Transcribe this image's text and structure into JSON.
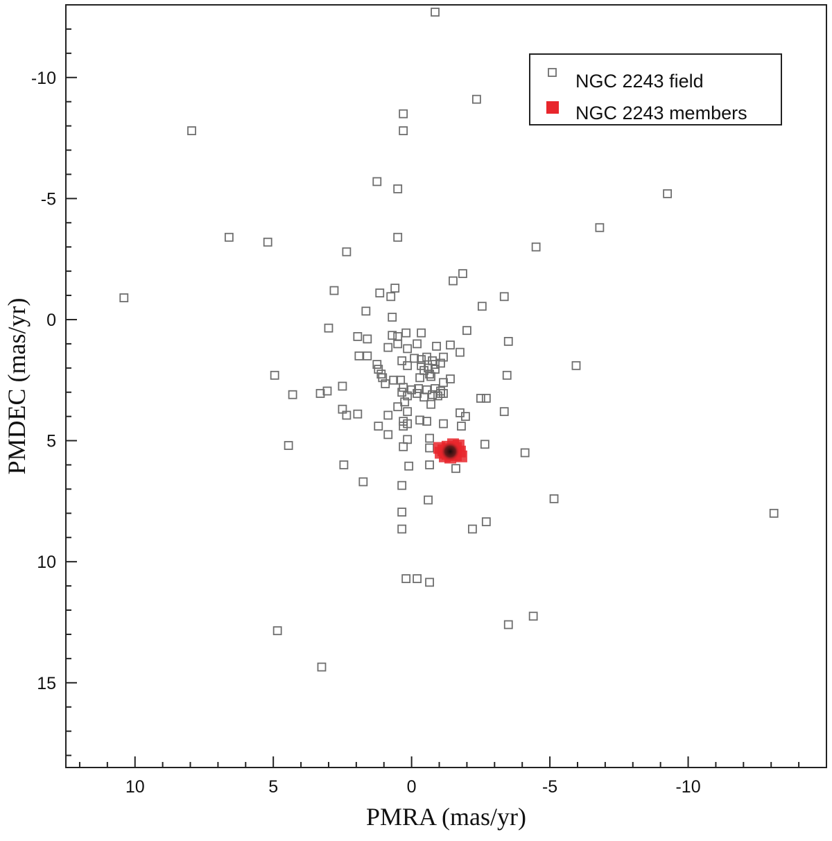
{
  "chart_data": {
    "type": "scatter",
    "title": "",
    "xlabel": "PMRA (mas/yr)",
    "ylabel": "PMDEC (mas/yr)",
    "xlim": [
      12.5,
      -15
    ],
    "ylim": [
      -13,
      18.5
    ],
    "x_reversed": true,
    "y_reversed": true,
    "x_ticks": [
      10,
      5,
      0,
      -5,
      -10
    ],
    "y_ticks": [
      -10,
      -5,
      0,
      5,
      10,
      15
    ],
    "x_tick_labels": [
      "10",
      "5",
      "0",
      "-5",
      "-10"
    ],
    "y_tick_labels": [
      "-10",
      "-5",
      "0",
      "5",
      "10",
      "15"
    ],
    "grid": false,
    "legend_position": "top-right",
    "series": [
      {
        "name": "NGC 2243 field",
        "marker": "open-square",
        "color": "#6e6e6e",
        "points": [
          [
            -0.85,
            -12.7
          ],
          [
            -2.35,
            -9.1
          ],
          [
            0.3,
            -8.5
          ],
          [
            0.3,
            -7.8
          ],
          [
            7.95,
            -7.8
          ],
          [
            1.25,
            -5.7
          ],
          [
            0.5,
            -5.4
          ],
          [
            -9.25,
            -5.2
          ],
          [
            -6.8,
            -3.8
          ],
          [
            6.6,
            -3.4
          ],
          [
            0.5,
            -3.4
          ],
          [
            5.2,
            -3.2
          ],
          [
            -4.5,
            -3.0
          ],
          [
            2.35,
            -2.8
          ],
          [
            -1.85,
            -1.9
          ],
          [
            -1.5,
            -1.6
          ],
          [
            2.8,
            -1.2
          ],
          [
            1.15,
            -1.1
          ],
          [
            0.6,
            -1.3
          ],
          [
            0.75,
            -0.95
          ],
          [
            10.4,
            -0.9
          ],
          [
            -3.35,
            -0.95
          ],
          [
            -2.55,
            -0.55
          ],
          [
            1.65,
            -0.35
          ],
          [
            0.7,
            -0.1
          ],
          [
            3.0,
            0.35
          ],
          [
            1.95,
            0.7
          ],
          [
            1.6,
            0.8
          ],
          [
            0.7,
            0.65
          ],
          [
            0.5,
            0.7
          ],
          [
            0.2,
            0.55
          ],
          [
            -0.35,
            0.55
          ],
          [
            -2.0,
            0.45
          ],
          [
            -3.5,
            0.9
          ],
          [
            0.85,
            1.15
          ],
          [
            0.5,
            1.0
          ],
          [
            0.15,
            1.2
          ],
          [
            -0.2,
            1.0
          ],
          [
            -0.9,
            1.1
          ],
          [
            -1.4,
            1.05
          ],
          [
            -1.75,
            1.35
          ],
          [
            1.6,
            1.5
          ],
          [
            1.9,
            1.5
          ],
          [
            0.35,
            1.7
          ],
          [
            -0.1,
            1.6
          ],
          [
            -0.35,
            1.65
          ],
          [
            -0.55,
            1.55
          ],
          [
            -0.75,
            1.7
          ],
          [
            -1.05,
            1.8
          ],
          [
            -1.15,
            1.55
          ],
          [
            0.15,
            1.9
          ],
          [
            -0.35,
            1.9
          ],
          [
            -0.6,
            2.0
          ],
          [
            -0.85,
            1.85
          ],
          [
            -5.95,
            1.9
          ],
          [
            1.25,
            1.85
          ],
          [
            1.2,
            2.05
          ],
          [
            1.1,
            2.25
          ],
          [
            -0.45,
            2.1
          ],
          [
            -0.65,
            2.25
          ],
          [
            -0.85,
            2.05
          ],
          [
            4.95,
            2.3
          ],
          [
            1.05,
            2.4
          ],
          [
            0.65,
            2.5
          ],
          [
            0.4,
            2.5
          ],
          [
            -0.3,
            2.4
          ],
          [
            -0.7,
            2.35
          ],
          [
            -1.15,
            2.6
          ],
          [
            -1.4,
            2.45
          ],
          [
            -3.45,
            2.3
          ],
          [
            2.5,
            2.75
          ],
          [
            0.95,
            2.65
          ],
          [
            0.3,
            2.8
          ],
          [
            0.0,
            2.9
          ],
          [
            -0.25,
            2.85
          ],
          [
            -0.55,
            2.9
          ],
          [
            -0.85,
            2.85
          ],
          [
            -1.05,
            2.95
          ],
          [
            -1.15,
            3.05
          ],
          [
            3.05,
            2.95
          ],
          [
            3.3,
            3.05
          ],
          [
            4.3,
            3.1
          ],
          [
            0.35,
            3.0
          ],
          [
            0.15,
            3.15
          ],
          [
            -0.2,
            3.05
          ],
          [
            -0.45,
            3.2
          ],
          [
            -0.75,
            3.1
          ],
          [
            -0.95,
            3.15
          ],
          [
            -1.05,
            3.05
          ],
          [
            -2.5,
            3.25
          ],
          [
            -2.7,
            3.25
          ],
          [
            0.25,
            3.4
          ],
          [
            -0.7,
            3.5
          ],
          [
            2.5,
            3.7
          ],
          [
            0.5,
            3.6
          ],
          [
            0.15,
            3.8
          ],
          [
            -1.75,
            3.85
          ],
          [
            -3.35,
            3.8
          ],
          [
            2.35,
            3.95
          ],
          [
            1.95,
            3.9
          ],
          [
            0.85,
            3.95
          ],
          [
            0.3,
            4.2
          ],
          [
            -0.3,
            4.15
          ],
          [
            -0.55,
            4.2
          ],
          [
            -1.95,
            4.0
          ],
          [
            1.2,
            4.4
          ],
          [
            0.3,
            4.4
          ],
          [
            0.15,
            4.3
          ],
          [
            -1.15,
            4.3
          ],
          [
            -1.8,
            4.4
          ],
          [
            0.85,
            4.75
          ],
          [
            0.15,
            4.95
          ],
          [
            -0.65,
            4.9
          ],
          [
            4.45,
            5.2
          ],
          [
            0.3,
            5.25
          ],
          [
            -0.65,
            5.3
          ],
          [
            -2.65,
            5.15
          ],
          [
            -4.1,
            5.5
          ],
          [
            2.45,
            6.0
          ],
          [
            0.1,
            6.05
          ],
          [
            -0.65,
            6.0
          ],
          [
            -1.6,
            6.15
          ],
          [
            1.75,
            6.7
          ],
          [
            0.35,
            6.85
          ],
          [
            -0.6,
            7.45
          ],
          [
            -5.15,
            7.4
          ],
          [
            0.35,
            7.95
          ],
          [
            -13.1,
            8.0
          ],
          [
            -2.7,
            8.35
          ],
          [
            0.35,
            8.65
          ],
          [
            -2.2,
            8.65
          ],
          [
            -0.2,
            10.7
          ],
          [
            0.2,
            10.7
          ],
          [
            -0.65,
            10.85
          ],
          [
            -3.5,
            12.6
          ],
          [
            -4.4,
            12.25
          ],
          [
            4.85,
            12.85
          ],
          [
            3.25,
            14.35
          ]
        ]
      },
      {
        "name": "NGC 2243 members",
        "marker": "filled-square",
        "color": "#e8262c",
        "core_color": "#2a1414",
        "points": [
          [
            -1.0,
            5.3
          ],
          [
            -1.15,
            5.4
          ],
          [
            -1.25,
            5.5
          ],
          [
            -1.35,
            5.35
          ],
          [
            -1.45,
            5.55
          ],
          [
            -1.55,
            5.45
          ],
          [
            -1.6,
            5.3
          ],
          [
            -1.7,
            5.2
          ],
          [
            -1.6,
            5.6
          ],
          [
            -1.4,
            5.7
          ],
          [
            -1.2,
            5.65
          ],
          [
            -1.05,
            5.5
          ],
          [
            -1.3,
            5.25
          ],
          [
            -1.5,
            5.15
          ],
          [
            -1.75,
            5.45
          ],
          [
            -1.8,
            5.65
          ],
          [
            -1.25,
            5.45
          ],
          [
            -1.35,
            5.5
          ],
          [
            -1.4,
            5.45
          ],
          [
            -1.3,
            5.55
          ]
        ]
      }
    ]
  }
}
